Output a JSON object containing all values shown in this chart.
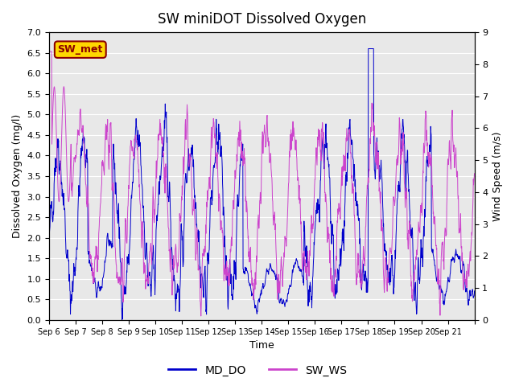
{
  "title": "SW miniDOT Dissolved Oxygen",
  "ylabel_left": "Dissolved Oxygen (mg/l)",
  "ylabel_right": "Wind Speed (m/s)",
  "xlabel": "Time",
  "ylim_left": [
    0.0,
    7.0
  ],
  "ylim_right": [
    0.0,
    9.0
  ],
  "color_do": "#0000CC",
  "color_ws": "#CC44CC",
  "legend_label_do": "MD_DO",
  "legend_label_ws": "SW_WS",
  "annotation_text": "SW_met",
  "annotation_facecolor": "#FFD700",
  "annotation_edgecolor": "#8B0000",
  "annotation_textcolor": "#8B0000",
  "background_color": "#E8E8E8",
  "fig_background": "#FFFFFF",
  "xtick_positions": [
    0,
    1,
    2,
    3,
    4,
    5,
    6,
    7,
    8,
    9,
    10,
    11,
    12,
    13,
    14,
    15,
    16
  ],
  "xtick_labels": [
    "Sep 6",
    "Sep 7",
    "Sep 8",
    "Sep 9",
    "Sep 10",
    "Sep 11",
    "Sep 12",
    "Sep 13",
    "Sep 14",
    "Sep 15",
    "Sep 16",
    "Sep 17",
    "Sep 18",
    "Sep 19",
    "Sep 20",
    "Sep 21",
    ""
  ],
  "yticks_left": [
    0.0,
    0.5,
    1.0,
    1.5,
    2.0,
    2.5,
    3.0,
    3.5,
    4.0,
    4.5,
    5.0,
    5.5,
    6.0,
    6.5,
    7.0
  ],
  "yticks_right": [
    0.0,
    1.0,
    2.0,
    3.0,
    4.0,
    5.0,
    6.0,
    7.0,
    8.0,
    9.0
  ],
  "n_days": 16,
  "seed": 42
}
